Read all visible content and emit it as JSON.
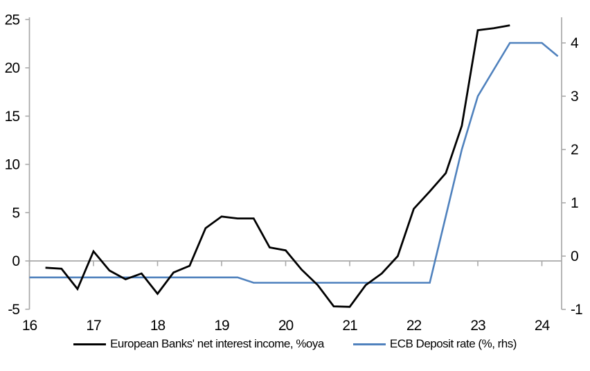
{
  "chart_data": {
    "type": "line",
    "title": "",
    "background": "#ffffff",
    "axis_color": "#a8a8a8",
    "text_color": "#000000",
    "grid": "zero-line-only",
    "legend_position": "bottom-center",
    "x_axis": {
      "range": [
        16,
        24.3
      ],
      "ticks": [
        16,
        17,
        18,
        19,
        20,
        21,
        22,
        23,
        24
      ],
      "tick_labels": [
        "16",
        "17",
        "18",
        "19",
        "20",
        "21",
        "22",
        "23",
        "24"
      ]
    },
    "left_axis": {
      "range": [
        -5,
        25
      ],
      "ticks": [
        -5,
        0,
        5,
        10,
        15,
        20,
        25
      ],
      "tick_labels": [
        "-5",
        "0",
        "5",
        "10",
        "15",
        "20",
        "25"
      ]
    },
    "right_axis": {
      "range": [
        -1,
        4.55
      ],
      "ticks": [
        -1,
        0,
        1,
        2,
        3,
        4
      ],
      "tick_labels": [
        "-1",
        "0",
        "1",
        "2",
        "3",
        "4"
      ]
    },
    "series": [
      {
        "name": "European Banks' net interest income, %oya",
        "axis": "left",
        "color": "#000000",
        "width": 2.8,
        "x": [
          16.25,
          16.5,
          16.75,
          17.0,
          17.25,
          17.5,
          17.75,
          18.0,
          18.25,
          18.5,
          18.75,
          19.0,
          19.25,
          19.5,
          19.75,
          20.0,
          20.25,
          20.5,
          20.75,
          21.0,
          21.25,
          21.5,
          21.75,
          22.0,
          22.25,
          22.5,
          22.75,
          23.0,
          23.25,
          23.5
        ],
        "values": [
          -0.7,
          -0.8,
          -2.9,
          1.0,
          -1.0,
          -1.9,
          -1.3,
          -3.4,
          -1.2,
          -0.5,
          3.4,
          4.6,
          4.4,
          4.4,
          1.4,
          1.1,
          -0.9,
          -2.5,
          -4.7,
          -4.75,
          -2.5,
          -1.3,
          0.5,
          5.4,
          7.2,
          9.1,
          14.0,
          23.9,
          24.1,
          24.4
        ]
      },
      {
        "name": "ECB Deposit rate (%, rhs)",
        "axis": "right",
        "color": "#4f81bd",
        "width": 2.6,
        "x": [
          16.0,
          16.25,
          16.5,
          16.75,
          17.0,
          17.25,
          17.5,
          17.75,
          18.0,
          18.25,
          18.5,
          18.75,
          19.0,
          19.25,
          19.5,
          19.75,
          20.0,
          20.25,
          20.5,
          20.75,
          21.0,
          21.25,
          21.5,
          21.75,
          22.0,
          22.25,
          22.5,
          22.75,
          23.0,
          23.25,
          23.5,
          23.75,
          24.0,
          24.25
        ],
        "values": [
          -0.4,
          -0.4,
          -0.4,
          -0.4,
          -0.4,
          -0.4,
          -0.4,
          -0.4,
          -0.4,
          -0.4,
          -0.4,
          -0.4,
          -0.4,
          -0.4,
          -0.5,
          -0.5,
          -0.5,
          -0.5,
          -0.5,
          -0.5,
          -0.5,
          -0.5,
          -0.5,
          -0.5,
          -0.5,
          -0.5,
          0.75,
          2.0,
          3.0,
          3.5,
          4.0,
          4.0,
          4.0,
          3.75
        ]
      }
    ],
    "legend": [
      "European Banks' net interest income, %oya",
      "ECB Deposit rate (%, rhs)"
    ]
  }
}
